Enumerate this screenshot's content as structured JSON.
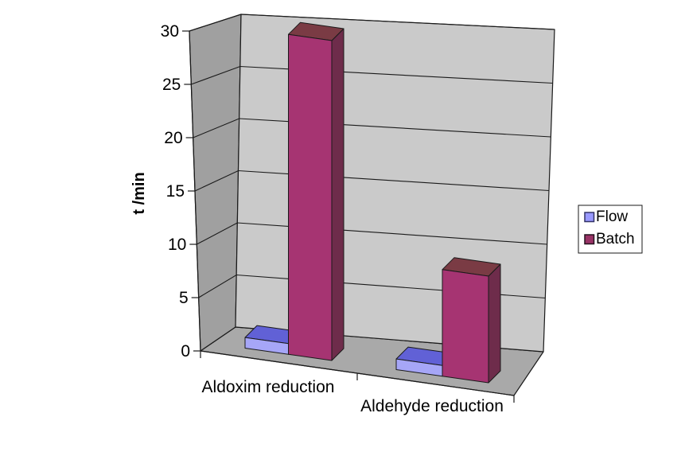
{
  "chart_data": {
    "type": "bar",
    "projection": "3d-clustered-column",
    "categories": [
      "Aldoxim reduction",
      "Aldehyde reduction"
    ],
    "series": [
      {
        "name": "Flow",
        "values": [
          1,
          1
        ],
        "legend_color": "#9999FF",
        "legend_border": "#333366",
        "face_front": "#A6A6F7",
        "face_top": "#6161D6",
        "face_side": "#8080E0"
      },
      {
        "name": "Batch",
        "values": [
          30,
          10
        ],
        "legend_color": "#993366",
        "legend_border": "#26121E",
        "face_front": "#A63472",
        "face_top": "#7A3B44",
        "face_side": "#6E2C4B"
      }
    ],
    "ylabel": "t /min",
    "yticks": [
      0,
      5,
      10,
      15,
      20,
      25,
      30
    ],
    "ylim": [
      0,
      30
    ],
    "grid": true,
    "legend_position": "right",
    "style": {
      "background": "#FFFFFF",
      "back_wall": "#CACACA",
      "side_wall": "#A0A0A0",
      "floor": "#A9A9A9",
      "line": "#1A1A1A",
      "text": "#000000",
      "legend_fill": "#FFFFFF"
    }
  }
}
